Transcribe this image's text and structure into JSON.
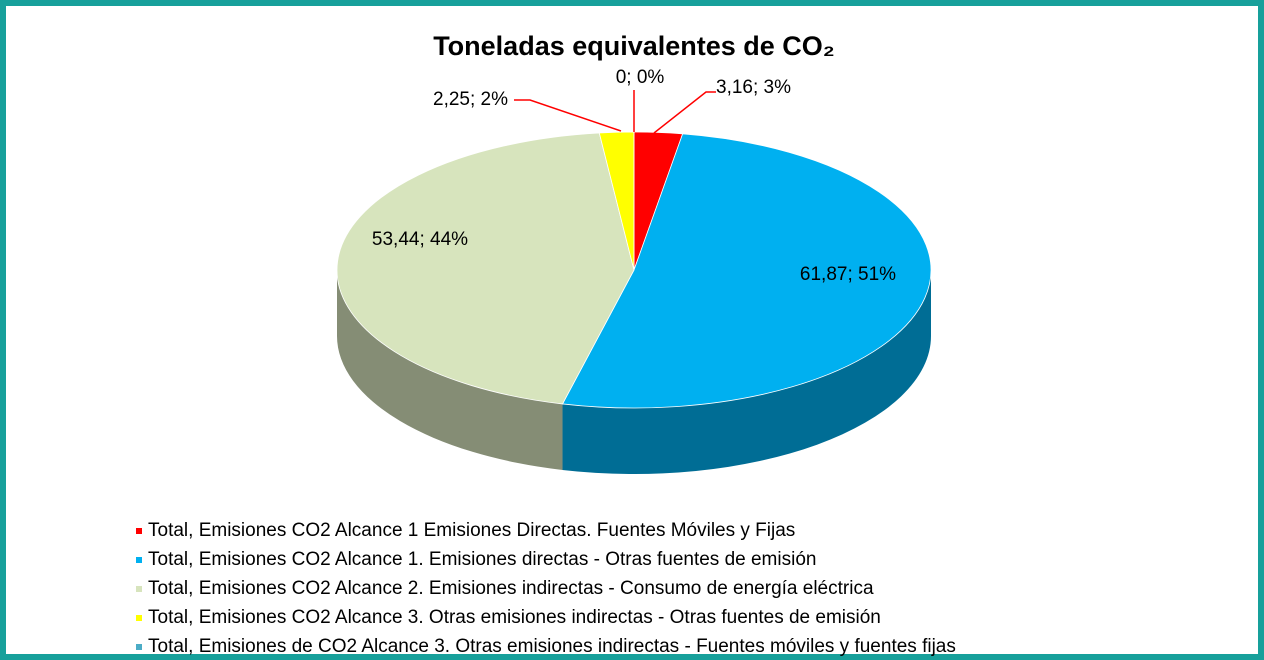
{
  "chart_data": {
    "type": "pie",
    "title": "Toneladas equivalentes de CO₂",
    "categories": [
      "Total, Emisiones CO2 Alcance 1 Emisiones Directas. Fuentes Móviles y Fijas",
      "Total, Emisiones CO2 Alcance 1. Emisiones directas - Otras fuentes de emisión",
      "Total, Emisiones CO2 Alcance 2. Emisiones indirectas - Consumo de energía eléctrica",
      "Total, Emisiones CO2 Alcance 3. Otras emisiones indirectas - Otras fuentes de emisión",
      "Total, Emisiones de CO2 Alcance 3. Otras emisiones indirectas - Fuentes móviles y fuentes fijas"
    ],
    "values": [
      3.16,
      61.87,
      53.44,
      2.25,
      0
    ],
    "value_labels": [
      "3,16; 3%",
      "61,87; 51%",
      "53,44; 44%",
      "2,25; 2%",
      "0; 0%"
    ],
    "colors": [
      "#ff0000",
      "#00b0f0",
      "#d7e4bd",
      "#ffff00",
      "#4bacc6"
    ],
    "legend": "bottom"
  }
}
